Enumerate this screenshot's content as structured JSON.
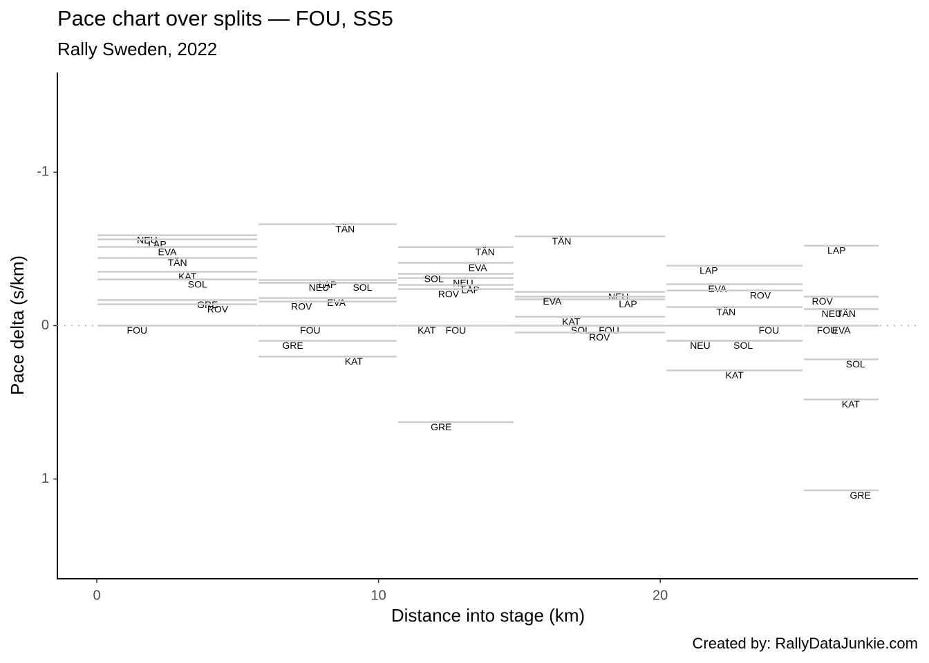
{
  "chart_data": {
    "type": "split-pace",
    "title": "Pace chart over splits — FOU, SS5",
    "subtitle": "Rally Sweden, 2022",
    "x_label": "Distance into stage (km)",
    "y_label": "Pace delta (s/km)",
    "caption": "Created by: RallyDataJunkie.com",
    "splits": [
      0,
      5.72,
      10.67,
      14.82,
      20.2,
      25.08,
      27.78
    ],
    "color": "#cccccc",
    "reference_line": 0,
    "y_reversed": true,
    "xlim": [
      -1.4,
      29.15
    ],
    "xticks": [
      0,
      10,
      20
    ],
    "ylim": [
      -1.65,
      1.65
    ],
    "yticks": [
      -1,
      0,
      1
    ],
    "series": [
      {
        "name": "FOU",
        "values": [
          0,
          0,
          0,
          0,
          0,
          0
        ]
      },
      {
        "name": "NEU",
        "values": [
          -0.589,
          -0.279,
          -0.31,
          -0.22,
          0.099,
          -0.108
        ]
      },
      {
        "name": "LAP",
        "values": [
          -0.562,
          -0.297,
          -0.265,
          -0.171,
          -0.391,
          -0.521
        ]
      },
      {
        "name": "EVA",
        "values": [
          -0.513,
          -0.18,
          -0.409,
          -0.189,
          -0.27,
          0
        ]
      },
      {
        "name": "TÄN",
        "values": [
          -0.441,
          -0.661,
          -0.512,
          -0.582,
          -0.121,
          -0.108
        ]
      },
      {
        "name": "KAT",
        "values": [
          -0.351,
          0.202,
          0,
          -0.058,
          0.292,
          0.481
        ]
      },
      {
        "name": "SOL",
        "values": [
          -0.301,
          -0.279,
          -0.337,
          0,
          0.099,
          0.22
        ]
      },
      {
        "name": "GRE",
        "values": [
          -0.167,
          0.099,
          0.629,
          null,
          null,
          1.074
        ]
      },
      {
        "name": "ROV",
        "values": [
          -0.139,
          -0.157,
          -0.238,
          0.045,
          -0.229,
          -0.189
        ]
      }
    ]
  }
}
